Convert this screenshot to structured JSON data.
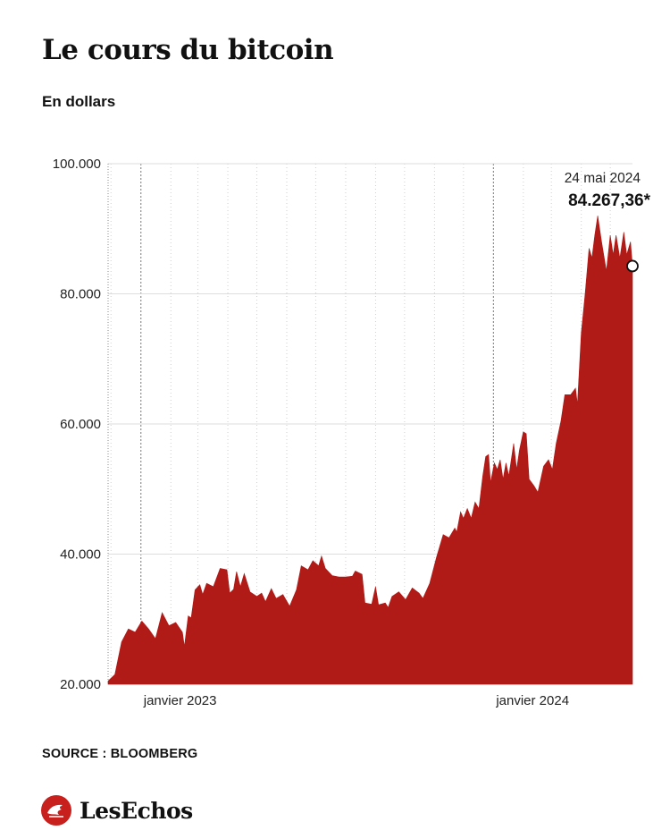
{
  "header": {
    "title": "Le cours du bitcoin",
    "subtitle": "En dollars"
  },
  "footer": {
    "source": "SOURCE : BLOOMBERG",
    "brand": "LesEchos"
  },
  "colors": {
    "area": "#b01a17",
    "grid": "#dddddd",
    "text": "#111111",
    "brand_red": "#c8201c"
  },
  "chart_data": {
    "type": "area",
    "title": "Le cours du bitcoin",
    "subtitle": "En dollars",
    "xlabel": "",
    "ylabel": "",
    "ylim": [
      20000,
      100000
    ],
    "yticks": [
      20000,
      40000,
      60000,
      80000,
      100000
    ],
    "ytick_labels": [
      "20.000",
      "40.000",
      "60.000",
      "80.000",
      "100.000"
    ],
    "xlim": [
      "2022-11-28",
      "2024-05-24"
    ],
    "xtick_labels": [
      {
        "date": "2023-01-01",
        "label": "janvier 2023"
      },
      {
        "date": "2024-01-01",
        "label": "janvier 2024"
      }
    ],
    "grid": true,
    "annotation": {
      "date": "2024-05-24",
      "date_label": "24 mai 2024",
      "value": 84267.36,
      "value_label": "84.267,36*"
    },
    "series": [
      {
        "points": [
          [
            "2022-11-28",
            20500
          ],
          [
            "2022-12-05",
            21500
          ],
          [
            "2022-12-12",
            26500
          ],
          [
            "2022-12-19",
            28500
          ],
          [
            "2022-12-26",
            28000
          ],
          [
            "2023-01-02",
            29700
          ],
          [
            "2023-01-09",
            28500
          ],
          [
            "2023-01-16",
            27000
          ],
          [
            "2023-01-23",
            31000
          ],
          [
            "2023-01-30",
            29000
          ],
          [
            "2023-02-06",
            29500
          ],
          [
            "2023-02-13",
            28000
          ],
          [
            "2023-02-15",
            25800
          ],
          [
            "2023-02-19",
            30500
          ],
          [
            "2023-02-22",
            30200
          ],
          [
            "2023-02-26",
            34500
          ],
          [
            "2023-03-03",
            35300
          ],
          [
            "2023-03-06",
            33800
          ],
          [
            "2023-03-10",
            35500
          ],
          [
            "2023-03-17",
            35000
          ],
          [
            "2023-03-24",
            37800
          ],
          [
            "2023-03-31",
            37600
          ],
          [
            "2023-04-03",
            34000
          ],
          [
            "2023-04-07",
            34600
          ],
          [
            "2023-04-10",
            37300
          ],
          [
            "2023-04-14",
            35000
          ],
          [
            "2023-04-18",
            37000
          ],
          [
            "2023-04-24",
            34200
          ],
          [
            "2023-05-01",
            33500
          ],
          [
            "2023-05-06",
            34000
          ],
          [
            "2023-05-10",
            32700
          ],
          [
            "2023-05-16",
            34700
          ],
          [
            "2023-05-21",
            33200
          ],
          [
            "2023-05-28",
            33800
          ],
          [
            "2023-06-04",
            32000
          ],
          [
            "2023-06-11",
            34500
          ],
          [
            "2023-06-16",
            38200
          ],
          [
            "2023-06-23",
            37600
          ],
          [
            "2023-06-28",
            39000
          ],
          [
            "2023-07-04",
            38200
          ],
          [
            "2023-07-07",
            39700
          ],
          [
            "2023-07-11",
            37800
          ],
          [
            "2023-07-18",
            36700
          ],
          [
            "2023-07-25",
            36500
          ],
          [
            "2023-08-01",
            36500
          ],
          [
            "2023-08-08",
            36600
          ],
          [
            "2023-08-11",
            37400
          ],
          [
            "2023-08-18",
            36900
          ],
          [
            "2023-08-21",
            32500
          ],
          [
            "2023-08-28",
            32300
          ],
          [
            "2023-09-01",
            35000
          ],
          [
            "2023-09-04",
            32200
          ],
          [
            "2023-09-11",
            32500
          ],
          [
            "2023-09-14",
            31800
          ],
          [
            "2023-09-18",
            33500
          ],
          [
            "2023-09-25",
            34200
          ],
          [
            "2023-10-02",
            33000
          ],
          [
            "2023-10-09",
            34800
          ],
          [
            "2023-10-16",
            34000
          ],
          [
            "2023-10-20",
            33200
          ],
          [
            "2023-10-27",
            35500
          ],
          [
            "2023-11-03",
            39500
          ],
          [
            "2023-11-10",
            43000
          ],
          [
            "2023-11-16",
            42500
          ],
          [
            "2023-11-22",
            44000
          ],
          [
            "2023-11-24",
            43400
          ],
          [
            "2023-11-28",
            46500
          ],
          [
            "2023-12-01",
            45500
          ],
          [
            "2023-12-05",
            47000
          ],
          [
            "2023-12-09",
            45500
          ],
          [
            "2023-12-13",
            48000
          ],
          [
            "2023-12-17",
            47000
          ],
          [
            "2023-12-21",
            52000
          ],
          [
            "2023-12-24",
            55000
          ],
          [
            "2023-12-27",
            55300
          ],
          [
            "2023-12-29",
            51000
          ],
          [
            "2024-01-02",
            54000
          ],
          [
            "2024-01-05",
            53000
          ],
          [
            "2024-01-08",
            54500
          ],
          [
            "2024-01-11",
            51500
          ],
          [
            "2024-01-14",
            54000
          ],
          [
            "2024-01-17",
            52000
          ],
          [
            "2024-01-22",
            57000
          ],
          [
            "2024-01-25",
            53000
          ],
          [
            "2024-01-28",
            56000
          ],
          [
            "2024-02-01",
            58800
          ],
          [
            "2024-02-04",
            58500
          ],
          [
            "2024-02-07",
            51500
          ],
          [
            "2024-02-12",
            50500
          ],
          [
            "2024-02-16",
            49500
          ],
          [
            "2024-02-22",
            53500
          ],
          [
            "2024-02-27",
            54500
          ],
          [
            "2024-03-02",
            53000
          ],
          [
            "2024-03-06",
            57000
          ],
          [
            "2024-03-11",
            60500
          ],
          [
            "2024-03-15",
            64500
          ],
          [
            "2024-03-21",
            64500
          ],
          [
            "2024-03-26",
            65500
          ],
          [
            "2024-03-28",
            63000
          ],
          [
            "2024-04-01",
            74000
          ],
          [
            "2024-04-05",
            80000
          ],
          [
            "2024-04-09",
            87000
          ],
          [
            "2024-04-12",
            85500
          ],
          [
            "2024-04-15",
            89000
          ],
          [
            "2024-04-18",
            92000
          ],
          [
            "2024-04-22",
            88000
          ],
          [
            "2024-04-27",
            83500
          ],
          [
            "2024-05-01",
            89000
          ],
          [
            "2024-05-04",
            86000
          ],
          [
            "2024-05-07",
            89000
          ],
          [
            "2024-05-11",
            85500
          ],
          [
            "2024-05-15",
            89500
          ],
          [
            "2024-05-18",
            86000
          ],
          [
            "2024-05-22",
            88000
          ],
          [
            "2024-05-24",
            84267
          ]
        ]
      }
    ]
  }
}
